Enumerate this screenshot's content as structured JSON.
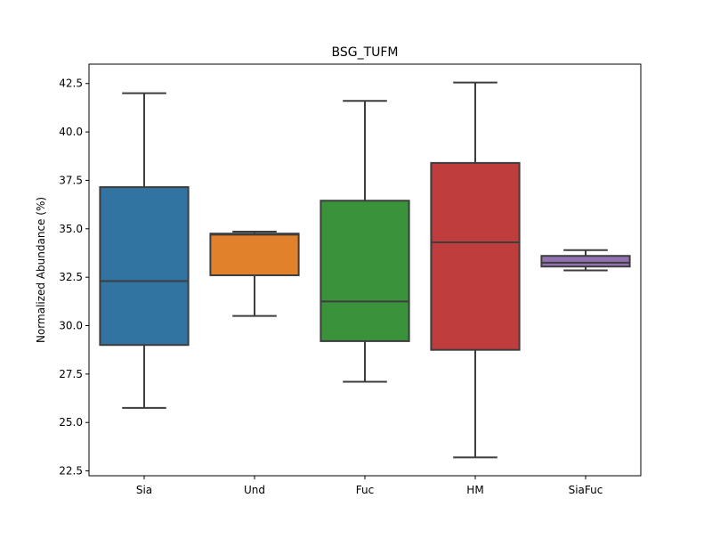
{
  "chart_data": {
    "type": "box",
    "title": "BSG_TUFM",
    "xlabel": "",
    "ylabel": "Normalized Abundance (%)",
    "ylim": [
      22.25,
      43.5
    ],
    "yticks": [
      "22.5",
      "25.0",
      "27.5",
      "30.0",
      "32.5",
      "35.0",
      "37.5",
      "40.0",
      "42.5"
    ],
    "grid": false,
    "categories": [
      "Sia",
      "Und",
      "Fuc",
      "HM",
      "SiaFuc"
    ],
    "boxes": [
      {
        "category": "Sia",
        "min": 25.75,
        "q1": 29.0,
        "median": 32.3,
        "q3": 37.15,
        "max": 42.0,
        "color": "#3274a1"
      },
      {
        "category": "Und",
        "min": 30.5,
        "q1": 32.6,
        "median": 34.7,
        "q3": 34.75,
        "max": 34.85,
        "color": "#e1812c"
      },
      {
        "category": "Fuc",
        "min": 27.1,
        "q1": 29.2,
        "median": 31.25,
        "q3": 36.45,
        "max": 41.6,
        "color": "#3a923a"
      },
      {
        "category": "HM",
        "min": 23.2,
        "q1": 28.75,
        "median": 34.3,
        "q3": 38.4,
        "max": 42.55,
        "color": "#c03d3e"
      },
      {
        "category": "SiaFuc",
        "min": 32.85,
        "q1": 33.05,
        "median": 33.25,
        "q3": 33.6,
        "max": 33.9,
        "color": "#9372b2"
      }
    ]
  }
}
